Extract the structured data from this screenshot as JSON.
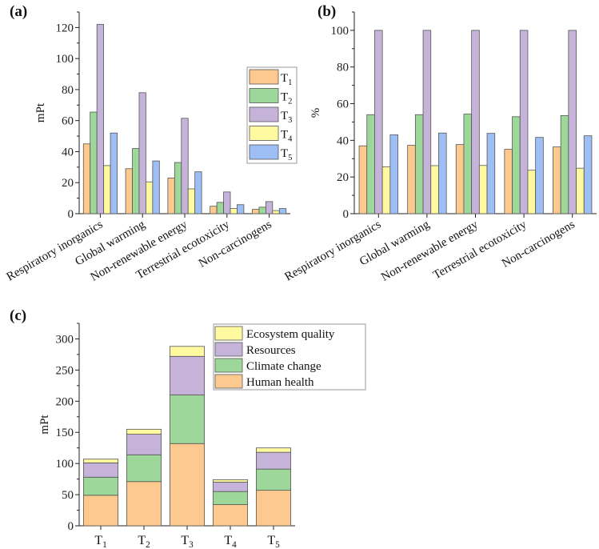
{
  "colors": {
    "T1": "#fdc98e",
    "T2": "#9dd89a",
    "T3": "#c5b3d9",
    "T4": "#fffaa0",
    "T5": "#9dbff5",
    "eco": "#fffaa0",
    "res": "#c5b3d9",
    "cc": "#9dd89a",
    "hh": "#fdc98e"
  },
  "chart_data": [
    {
      "type": "bar",
      "panel_label": "(a)",
      "ylabel": "mPt",
      "ylim": [
        0,
        130
      ],
      "yticks": [
        0,
        20,
        40,
        60,
        80,
        100,
        120
      ],
      "categories": [
        "Respiratory inorganics",
        "Global warming",
        "Non-renewable energy",
        "Terrestrial ecotoxicity",
        "Non-carcinogens"
      ],
      "legend_placement": "right",
      "series": [
        {
          "name": "T",
          "sub": "1",
          "values": [
            45,
            29,
            23,
            4.8,
            2.8
          ]
        },
        {
          "name": "T",
          "sub": "2",
          "values": [
            65.5,
            42,
            33,
            7.3,
            4.2
          ]
        },
        {
          "name": "T",
          "sub": "3",
          "values": [
            122,
            78,
            61.5,
            14,
            7.8
          ]
        },
        {
          "name": "T",
          "sub": "4",
          "values": [
            31,
            20.5,
            16,
            3.3,
            2
          ]
        },
        {
          "name": "T",
          "sub": "5",
          "values": [
            52,
            34,
            27,
            5.8,
            3.3
          ]
        }
      ]
    },
    {
      "type": "bar",
      "panel_label": "(b)",
      "ylabel": "%",
      "ylim": [
        0,
        110
      ],
      "yticks": [
        0,
        20,
        40,
        60,
        80,
        100
      ],
      "categories": [
        "Respiratory inorganics",
        "Global warming",
        "Non-renewable energy",
        "Terrestrial ecotoxicity",
        "Non-carcinogens"
      ],
      "series": [
        {
          "name": "T1",
          "values": [
            37,
            37.3,
            37.7,
            35.1,
            36.4
          ]
        },
        {
          "name": "T2",
          "values": [
            54,
            54,
            54.3,
            52.9,
            53.5
          ]
        },
        {
          "name": "T3",
          "values": [
            100,
            100,
            100,
            100,
            100
          ]
        },
        {
          "name": "T4",
          "values": [
            25.5,
            26.2,
            26.3,
            23.7,
            24.8
          ]
        },
        {
          "name": "T5",
          "values": [
            43,
            44,
            43.8,
            41.6,
            42.5
          ]
        }
      ]
    },
    {
      "type": "stacked-bar",
      "panel_label": "(c)",
      "ylabel": "mPt",
      "ylim": [
        0,
        325
      ],
      "yticks": [
        0,
        50,
        100,
        150,
        200,
        250,
        300
      ],
      "categories": [
        {
          "name": "T",
          "sub": "1"
        },
        {
          "name": "T",
          "sub": "2"
        },
        {
          "name": "T",
          "sub": "3"
        },
        {
          "name": "T",
          "sub": "4"
        },
        {
          "name": "T",
          "sub": "5"
        }
      ],
      "legend_placement": "top-right",
      "series": [
        {
          "key": "hh",
          "name": "Human health",
          "values": [
            49,
            71,
            132,
            34,
            57
          ]
        },
        {
          "key": "cc",
          "name": "Climate change",
          "values": [
            29,
            43,
            78,
            21,
            34
          ]
        },
        {
          "key": "res",
          "name": "Resources",
          "values": [
            23,
            33,
            62,
            15,
            27
          ]
        },
        {
          "key": "eco",
          "name": "Ecosystem quality",
          "values": [
            6,
            8,
            16,
            4,
            7
          ]
        }
      ]
    }
  ]
}
